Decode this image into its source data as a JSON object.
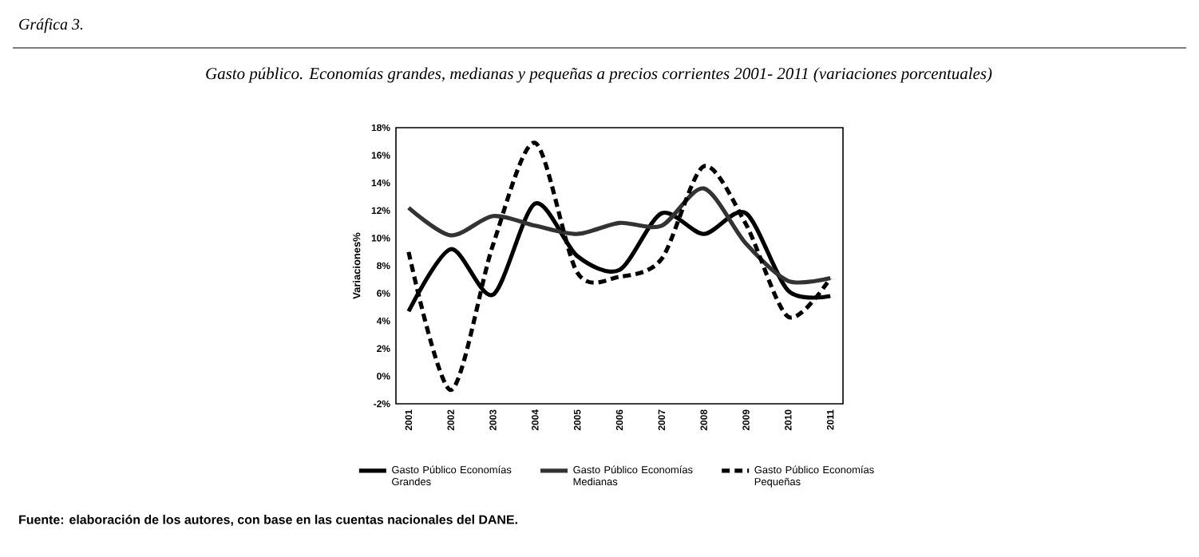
{
  "chart_data": {
    "type": "line",
    "title": "Gasto público. Economías grandes, medianas y pequeñas a precios corrientes 2001- 2011 (variaciones porcentuales)",
    "ylabel": "Variaciones%",
    "categories": [
      "2001",
      "2002",
      "2003",
      "2004",
      "2005",
      "2006",
      "2007",
      "2008",
      "2009",
      "2010",
      "2011"
    ],
    "series": [
      {
        "name": "Gasto Público Economías Grandes",
        "color": "#000000",
        "line_style": "solid",
        "values": [
          4.7,
          9.2,
          5.9,
          12.5,
          8.7,
          7.7,
          11.8,
          10.3,
          11.8,
          6.2,
          5.8
        ]
      },
      {
        "name": "Gasto Público Economías Medianas",
        "color": "#333333",
        "line_style": "solid",
        "values": [
          12.2,
          10.2,
          11.6,
          10.9,
          10.3,
          11.1,
          10.9,
          13.6,
          9.6,
          6.9,
          7.1
        ]
      },
      {
        "name": "Gasto Público Economías Pequeñas",
        "color": "#000000",
        "line_style": "dashed",
        "values": [
          9.0,
          -1.0,
          9.5,
          16.9,
          7.5,
          7.2,
          8.5,
          15.2,
          11.0,
          4.3,
          7.1
        ]
      }
    ],
    "ylim": [
      -2,
      18
    ],
    "yticks": [
      {
        "value": -2,
        "label": "-2%"
      },
      {
        "value": 0,
        "label": "0%"
      },
      {
        "value": 2,
        "label": "2%"
      },
      {
        "value": 4,
        "label": "4%"
      },
      {
        "value": 6,
        "label": "6%"
      },
      {
        "value": 8,
        "label": "8%"
      },
      {
        "value": 10,
        "label": "10%"
      },
      {
        "value": 12,
        "label": "12%"
      },
      {
        "value": 14,
        "label": "14%"
      },
      {
        "value": 16,
        "label": "16%"
      },
      {
        "value": 18,
        "label": "18%"
      }
    ],
    "grid": false,
    "legend": "bottom",
    "marker": "none",
    "annotations": [
      "Gráfica 3.",
      "Fuente: elaboración de los autores, con base en las cuentas nacionales del DANE."
    ]
  }
}
